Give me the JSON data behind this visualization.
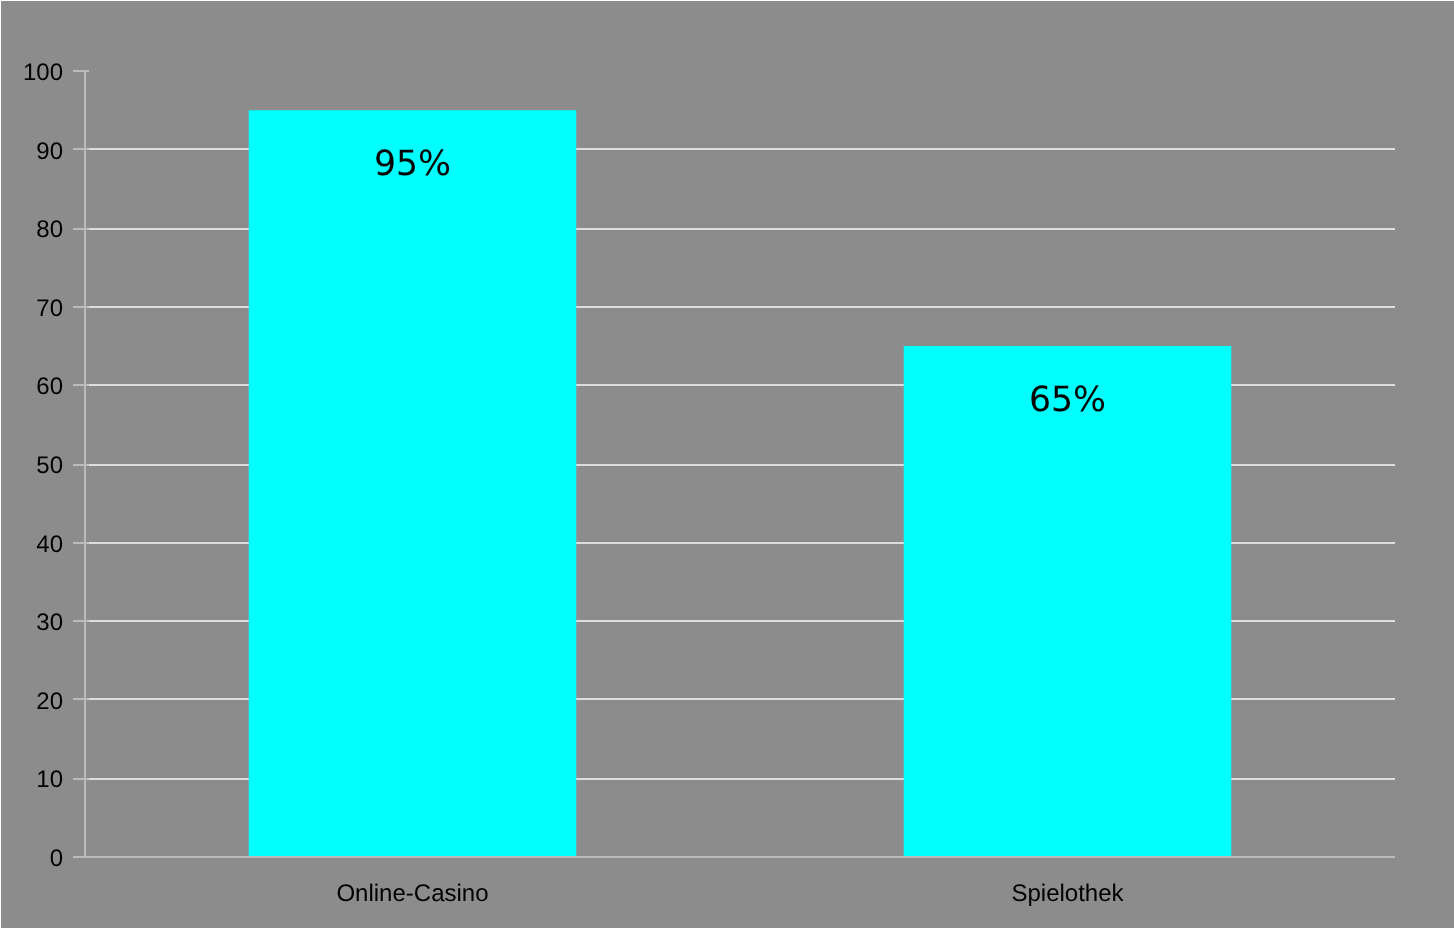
{
  "chart_data": {
    "type": "bar",
    "categories": [
      "Online-Casino",
      "Spielothek"
    ],
    "values": [
      95,
      65
    ],
    "value_labels": [
      "95%",
      "65%"
    ],
    "color": "#00ffff",
    "ylim": [
      0,
      100
    ],
    "yticks": [
      0,
      10,
      20,
      30,
      40,
      50,
      60,
      70,
      80,
      90,
      100
    ],
    "grid": "y"
  }
}
